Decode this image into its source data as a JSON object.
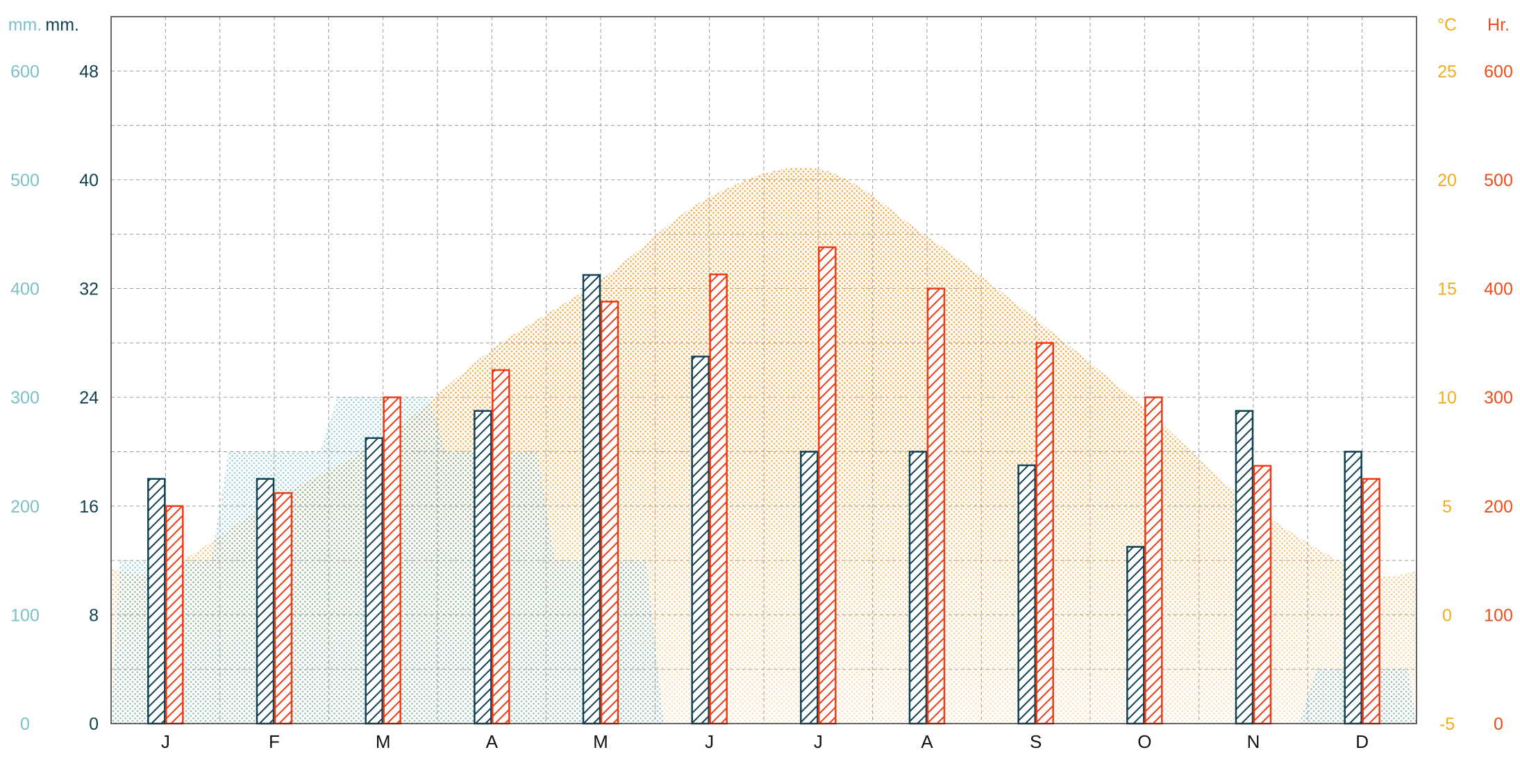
{
  "chart_data": {
    "type": "bar",
    "categories": [
      "J",
      "F",
      "M",
      "A",
      "M",
      "J",
      "J",
      "A",
      "S",
      "O",
      "N",
      "D"
    ],
    "axes": {
      "left_outer": {
        "unit": "mm.",
        "ticks": [
          "0",
          "100",
          "200",
          "300",
          "400",
          "500",
          "600"
        ],
        "range": [
          0,
          650
        ],
        "color": "#7cc0c8"
      },
      "left_inner": {
        "unit": "mm.",
        "ticks": [
          "0",
          "8",
          "16",
          "24",
          "32",
          "40",
          "48"
        ],
        "range": [
          0,
          52
        ],
        "color": "#0f4152"
      },
      "right_inner": {
        "unit": "°C",
        "ticks": [
          "-5",
          "0",
          "5",
          "10",
          "15",
          "20",
          "25"
        ],
        "range": [
          -5,
          27.5
        ],
        "color": "#f2ac1c"
      },
      "right_outer": {
        "unit": "Hr.",
        "ticks": [
          "0",
          "100",
          "200",
          "300",
          "400",
          "500",
          "600"
        ],
        "range": [
          0,
          650
        ],
        "color": "#ec4c1a"
      }
    },
    "series": [
      {
        "axis": "left_inner",
        "kind": "bar",
        "color": "#0f4152",
        "values": [
          18,
          18,
          21,
          23,
          33,
          27,
          20,
          20,
          19,
          13,
          23,
          20
        ]
      },
      {
        "axis": "right_outer",
        "kind": "bar",
        "color": "#ec3a14",
        "values": [
          200,
          212,
          300,
          325,
          388,
          413,
          438,
          400,
          350,
          300,
          237,
          225
        ]
      },
      {
        "axis": "right_inner",
        "kind": "area",
        "color": "#f1b35a",
        "values": [
          2.1,
          5.3,
          8.1,
          12.2,
          15.4,
          19.2,
          20.5,
          17.4,
          13.6,
          9.5,
          5.0,
          2.0
        ]
      },
      {
        "axis": "left_outer",
        "kind": "area",
        "color": "#5fb3c0",
        "values": [
          150,
          250,
          300,
          250,
          150,
          0,
          0,
          0,
          0,
          0,
          0,
          50
        ]
      }
    ],
    "grid": true
  }
}
